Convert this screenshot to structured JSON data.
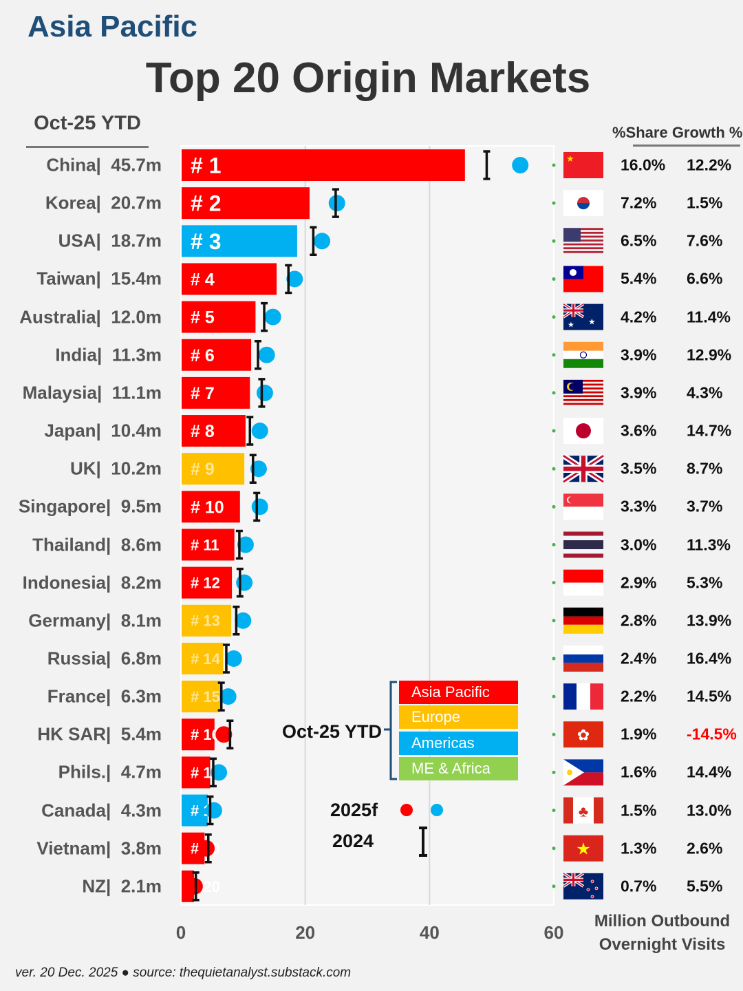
{
  "region_title": "Asia Pacific",
  "title": "Top 20 Origin Markets",
  "period_label": "Oct-25 YTD",
  "share_growth_header": "%Share Growth %",
  "unit_label": [
    "Million Outbound",
    "Overnight Visits"
  ],
  "footer": "ver. 20 Dec. 2025 ● source: thequietanalyst.substack.com",
  "legend": {
    "period": "Oct-25 YTD",
    "regions": [
      {
        "name": "Asia Pacific",
        "color": "#ff0000"
      },
      {
        "name": "Europe",
        "color": "#ffc000"
      },
      {
        "name": "Americas",
        "color": "#00b0f0"
      },
      {
        "name": "ME & Africa",
        "color": "#92d050"
      }
    ],
    "forecast_label": "2025f",
    "prior_label": "2024",
    "forecast_colors": [
      "#ff0000",
      "#00b0f0"
    ]
  },
  "chart_data": {
    "type": "bar",
    "orientation": "horizontal",
    "xlim": [
      0,
      60
    ],
    "xticks": [
      0,
      20,
      40,
      60
    ],
    "grid": true,
    "categories": [
      "China",
      "Korea",
      "USA",
      "Taiwan",
      "Australia",
      "India",
      "Malaysia",
      "Japan",
      "UK",
      "Singapore",
      "Thailand",
      "Indonesia",
      "Germany",
      "Russia",
      "France",
      "HK SAR",
      "Phils.",
      "Canada",
      "Vietnam",
      "NZ"
    ],
    "value_labels": [
      "45.7m",
      "20.7m",
      "18.7m",
      "15.4m",
      "12.0m",
      "11.3m",
      "11.1m",
      "10.4m",
      "10.2m",
      "9.5m",
      "8.6m",
      "8.2m",
      "8.1m",
      "6.8m",
      "6.3m",
      "5.4m",
      "4.7m",
      "4.3m",
      "3.8m",
      "2.1m"
    ],
    "ranks": [
      "# 1",
      "# 2",
      "# 3",
      "# 4",
      "# 5",
      "# 6",
      "# 7",
      "# 8",
      "# 9",
      "# 10",
      "# 11",
      "# 12",
      "# 13",
      "# 14",
      "# 15",
      "# 16",
      "# 17",
      "# 18",
      "# 19",
      "# 20"
    ],
    "regions": [
      "Asia Pacific",
      "Asia Pacific",
      "Americas",
      "Asia Pacific",
      "Asia Pacific",
      "Asia Pacific",
      "Asia Pacific",
      "Asia Pacific",
      "Europe",
      "Asia Pacific",
      "Asia Pacific",
      "Asia Pacific",
      "Europe",
      "Europe",
      "Europe",
      "Asia Pacific",
      "Asia Pacific",
      "Americas",
      "Asia Pacific",
      "Asia Pacific"
    ],
    "series": [
      {
        "name": "Oct-25 YTD",
        "values": [
          45.7,
          20.7,
          18.7,
          15.4,
          12.0,
          11.3,
          11.1,
          10.4,
          10.2,
          9.5,
          8.6,
          8.2,
          8.1,
          6.8,
          6.3,
          5.4,
          4.7,
          4.3,
          3.8,
          2.1
        ]
      },
      {
        "name": "2024",
        "values": [
          49.2,
          24.9,
          21.3,
          17.3,
          13.4,
          12.4,
          13.0,
          11.1,
          11.6,
          12.2,
          9.4,
          9.5,
          8.9,
          7.3,
          6.5,
          7.9,
          5.2,
          4.7,
          4.4,
          2.4
        ]
      },
      {
        "name": "2025f",
        "values": [
          54.6,
          25.1,
          22.7,
          18.3,
          14.8,
          13.8,
          13.5,
          12.7,
          12.5,
          12.7,
          10.4,
          10.2,
          10.0,
          8.5,
          7.6,
          6.9,
          6.1,
          5.3,
          4.1,
          2.2
        ]
      }
    ],
    "share": [
      "16.0%",
      "7.2%",
      "6.5%",
      "5.4%",
      "4.2%",
      "3.9%",
      "3.9%",
      "3.6%",
      "3.5%",
      "3.3%",
      "3.0%",
      "2.9%",
      "2.8%",
      "2.4%",
      "2.2%",
      "1.9%",
      "1.6%",
      "1.5%",
      "1.3%",
      "0.7%"
    ],
    "growth": [
      "12.2%",
      "1.5%",
      "7.6%",
      "6.6%",
      "11.4%",
      "12.9%",
      "4.3%",
      "14.7%",
      "8.7%",
      "3.7%",
      "11.3%",
      "5.3%",
      "13.9%",
      "16.4%",
      "14.5%",
      "-14.5%",
      "14.4%",
      "13.0%",
      "2.6%",
      "5.5%"
    ],
    "flags": [
      "cn",
      "kr",
      "us",
      "tw",
      "au",
      "in",
      "my",
      "jp",
      "gb",
      "sg",
      "th",
      "id",
      "de",
      "ru",
      "fr",
      "hk",
      "ph",
      "ca",
      "vn",
      "nz"
    ]
  }
}
